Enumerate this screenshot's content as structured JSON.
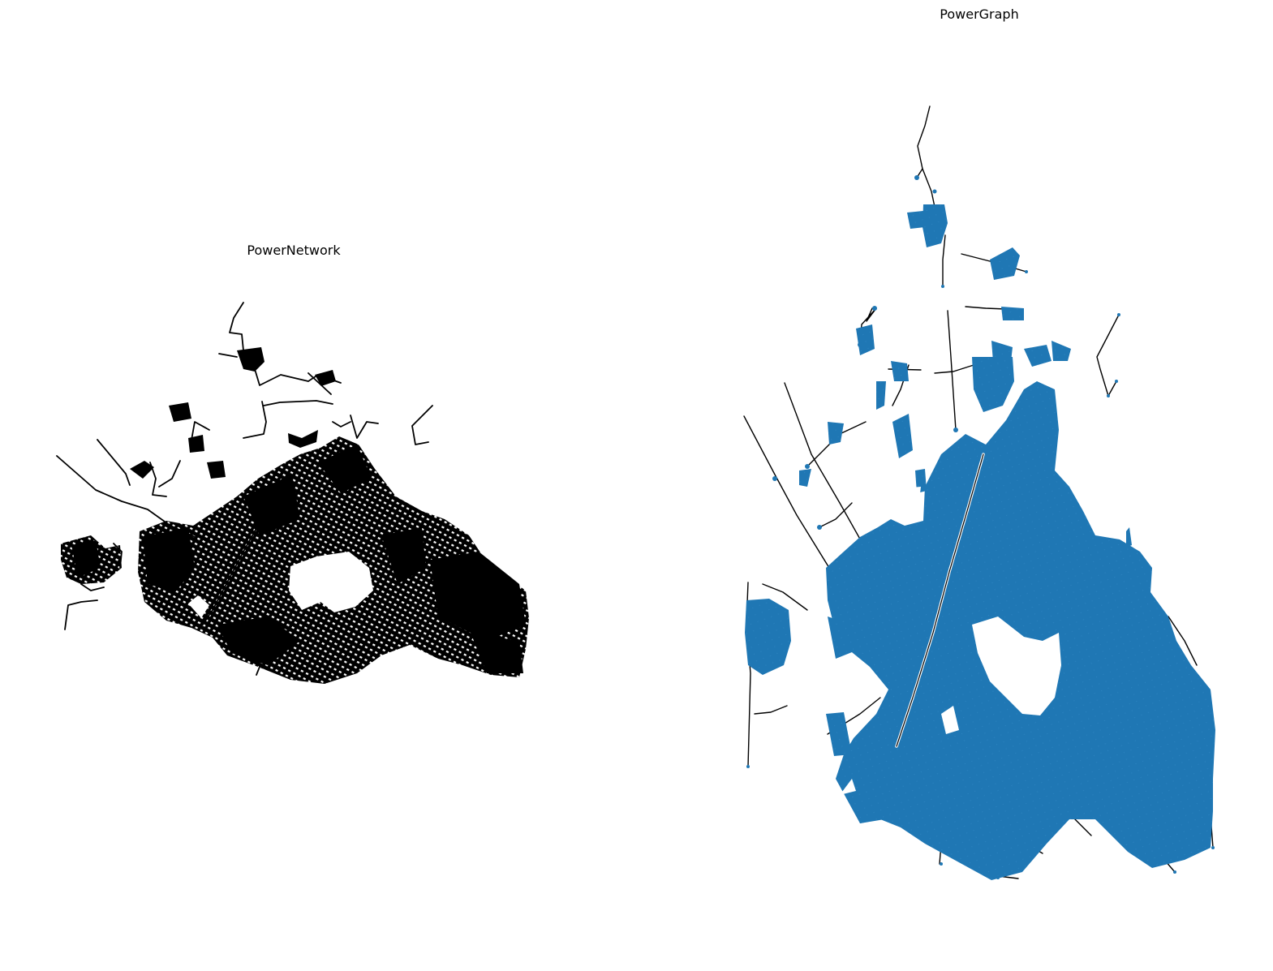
{
  "panels": {
    "left": {
      "title": "PowerNetwork",
      "edge_color": "#000000"
    },
    "right": {
      "title": "PowerGraph",
      "node_color": "#1f77b4",
      "edge_color": "#000000"
    }
  }
}
